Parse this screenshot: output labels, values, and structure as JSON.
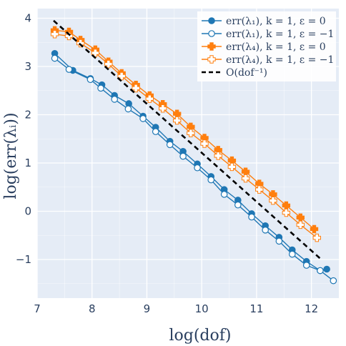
{
  "chart_data": {
    "type": "line",
    "xlabel": "log(dof)",
    "ylabel": "log(err(λᵢ))",
    "xlim": [
      7,
      12.5
    ],
    "ylim": [
      -1.8,
      4.2
    ],
    "x_ticks": [
      7,
      8,
      9,
      10,
      11,
      12
    ],
    "y_ticks": [
      -1,
      0,
      1,
      2,
      3,
      4
    ],
    "x_tick_labels": [
      "7",
      "8",
      "9",
      "10",
      "11",
      "12"
    ],
    "y_tick_labels": [
      "−1",
      "0",
      "1",
      "2",
      "3",
      "4"
    ],
    "grid": true,
    "legend_position": "top-right",
    "background": "#e5ecf6",
    "series": [
      {
        "name": "err(λ₁), k = 1, ε = 0",
        "color": "#1f77b4",
        "marker": "filled-circle",
        "x": [
          7.32,
          7.65,
          7.97,
          8.18,
          8.41,
          8.67,
          8.93,
          9.16,
          9.42,
          9.66,
          9.92,
          10.17,
          10.41,
          10.66,
          10.91,
          11.16,
          11.41,
          11.65,
          11.91,
          12.16,
          12.28
        ],
        "y": [
          3.27,
          2.92,
          2.75,
          2.62,
          2.4,
          2.23,
          1.97,
          1.74,
          1.45,
          1.24,
          0.98,
          0.72,
          0.45,
          0.23,
          -0.05,
          -0.3,
          -0.54,
          -0.8,
          -1.04,
          -1.23,
          -1.2
        ]
      },
      {
        "name": "err(λ₁), k = 1, ε = −1",
        "color": "#1f77b4",
        "marker": "open-circle",
        "x": [
          7.32,
          7.58,
          7.97,
          8.16,
          8.41,
          8.66,
          8.93,
          9.16,
          9.42,
          9.66,
          9.92,
          10.17,
          10.41,
          10.66,
          10.91,
          11.16,
          11.41,
          11.65,
          11.91,
          12.16,
          12.4
        ],
        "y": [
          3.17,
          2.94,
          2.73,
          2.55,
          2.32,
          2.12,
          1.92,
          1.65,
          1.38,
          1.14,
          0.9,
          0.65,
          0.35,
          0.13,
          -0.12,
          -0.39,
          -0.62,
          -0.89,
          -1.12,
          -1.23,
          -1.44
        ]
      },
      {
        "name": "err(λ₄), k = 1, ε = 0",
        "color": "#ff7f0e",
        "marker": "filled-cross",
        "x": [
          7.32,
          7.58,
          7.79,
          8.06,
          8.3,
          8.54,
          8.8,
          9.05,
          9.29,
          9.55,
          9.8,
          10.05,
          10.3,
          10.55,
          10.8,
          11.05,
          11.3,
          11.54,
          11.8,
          12.05
        ],
        "y": [
          3.75,
          3.72,
          3.55,
          3.35,
          3.1,
          2.86,
          2.62,
          2.4,
          2.22,
          2.02,
          1.75,
          1.52,
          1.27,
          1.05,
          0.82,
          0.57,
          0.35,
          0.12,
          -0.13,
          -0.37
        ]
      },
      {
        "name": "err(λ₄), k = 1, ε = −1",
        "color": "#ff7f0e",
        "marker": "open-cross",
        "x": [
          7.32,
          7.58,
          7.79,
          8.06,
          8.3,
          8.54,
          8.8,
          9.05,
          9.29,
          9.55,
          9.8,
          10.05,
          10.3,
          10.55,
          10.8,
          11.05,
          11.3,
          11.54,
          11.8,
          12.1
        ],
        "y": [
          3.67,
          3.63,
          3.48,
          3.28,
          3.05,
          2.8,
          2.55,
          2.33,
          2.13,
          1.88,
          1.62,
          1.4,
          1.15,
          0.92,
          0.68,
          0.45,
          0.22,
          -0.03,
          -0.28,
          -0.55
        ]
      },
      {
        "name": "O(dof⁻¹)",
        "color": "#000000",
        "marker": "none",
        "dash": true,
        "x": [
          7.3,
          12.2
        ],
        "y": [
          3.95,
          -1.02
        ]
      }
    ]
  }
}
